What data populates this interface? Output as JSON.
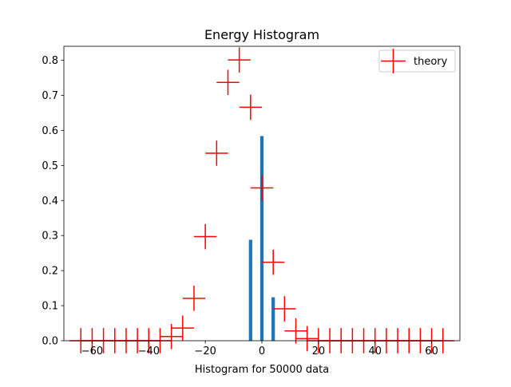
{
  "chart_data": {
    "type": "bar",
    "title": "Energy Histogram",
    "xlabel": "Histogram for 50000 data",
    "ylabel": "",
    "xlim": [
      -70,
      70
    ],
    "ylim": [
      0,
      0.84
    ],
    "xticks": [
      -60,
      -40,
      -20,
      0,
      20,
      40,
      60
    ],
    "xtick_labels": [
      "−60",
      "−40",
      "−20",
      "0",
      "20",
      "40",
      "60"
    ],
    "yticks": [
      0.0,
      0.1,
      0.2,
      0.3,
      0.4,
      0.5,
      0.6,
      0.7,
      0.8
    ],
    "ytick_labels": [
      "0.0",
      "0.1",
      "0.2",
      "0.3",
      "0.4",
      "0.5",
      "0.6",
      "0.7",
      "0.8"
    ],
    "grid": false,
    "legend": {
      "placement": "upper right",
      "entries": [
        {
          "label": "theory",
          "color": "#ff0000",
          "marker": "cross"
        }
      ]
    },
    "bars": {
      "color": "#1f77b4",
      "width": 1.2,
      "x": [
        -4,
        0,
        4
      ],
      "values": [
        0.288,
        0.584,
        0.124
      ]
    },
    "theory": {
      "label": "theory",
      "color": "#ff0000",
      "xerr": 4,
      "yerr": 0.036,
      "points": [
        {
          "x": -64,
          "y": 0.0
        },
        {
          "x": -60,
          "y": 0.0
        },
        {
          "x": -56,
          "y": 0.0
        },
        {
          "x": -52,
          "y": 0.0
        },
        {
          "x": -48,
          "y": 0.0
        },
        {
          "x": -44,
          "y": 0.0
        },
        {
          "x": -40,
          "y": 0.0
        },
        {
          "x": -36,
          "y": 0.0
        },
        {
          "x": -32,
          "y": 0.012
        },
        {
          "x": -28,
          "y": 0.036
        },
        {
          "x": -24,
          "y": 0.121
        },
        {
          "x": -20,
          "y": 0.297
        },
        {
          "x": -16,
          "y": 0.535
        },
        {
          "x": -12,
          "y": 0.737
        },
        {
          "x": -8,
          "y": 0.801
        },
        {
          "x": -4,
          "y": 0.666
        },
        {
          "x": 0,
          "y": 0.436
        },
        {
          "x": 4,
          "y": 0.224
        },
        {
          "x": 8,
          "y": 0.091
        },
        {
          "x": 12,
          "y": 0.028
        },
        {
          "x": 16,
          "y": 0.006
        },
        {
          "x": 20,
          "y": 0.0
        },
        {
          "x": 24,
          "y": 0.0
        },
        {
          "x": 28,
          "y": 0.0
        },
        {
          "x": 32,
          "y": 0.0
        },
        {
          "x": 36,
          "y": 0.0
        },
        {
          "x": 40,
          "y": 0.0
        },
        {
          "x": 44,
          "y": 0.0
        },
        {
          "x": 48,
          "y": 0.0
        },
        {
          "x": 52,
          "y": 0.0
        },
        {
          "x": 56,
          "y": 0.0
        },
        {
          "x": 60,
          "y": 0.0
        },
        {
          "x": 64,
          "y": 0.0
        }
      ]
    }
  }
}
